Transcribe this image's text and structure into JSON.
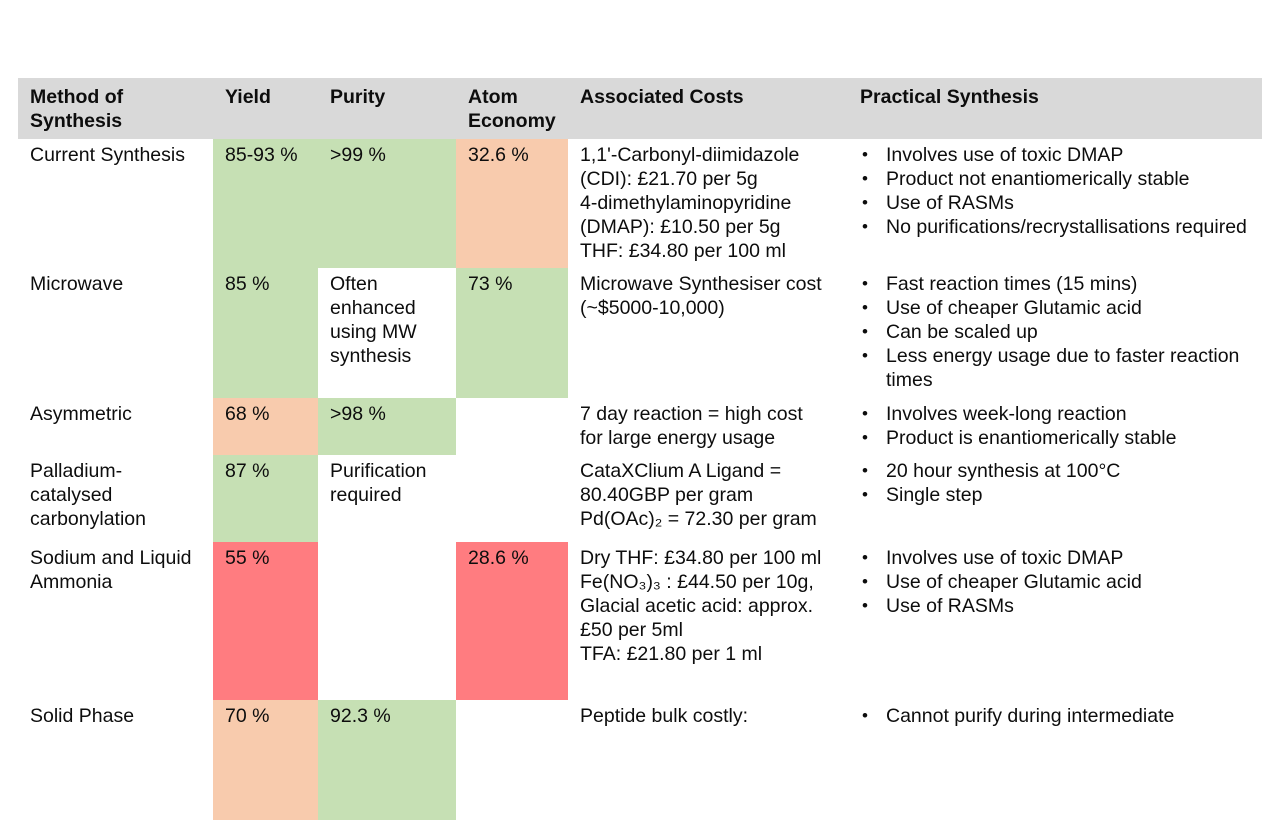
{
  "bullet_char": "•",
  "colors": {
    "header_bg": "#D9D9D9",
    "good": "#C6E0B4",
    "fair": "#F8CBAD",
    "poor": "#FF7C80"
  },
  "table": {
    "columns": [
      {
        "label": "Method of Synthesis"
      },
      {
        "label": "Yield"
      },
      {
        "label": "Purity"
      },
      {
        "label": "Atom Economy"
      },
      {
        "label": "Associated Costs"
      },
      {
        "label": "Practical Synthesis"
      }
    ],
    "rows": [
      {
        "method": "Current Synthesis",
        "yield": {
          "text": "85-93 %",
          "rating": "good"
        },
        "purity": {
          "text": ">99 %",
          "rating": "good"
        },
        "atom_economy": {
          "text": "32.6 %",
          "rating": "fair"
        },
        "associated_costs": [
          "1,1'-Carbonyl-diimidazole (CDI): £21.70 per 5g",
          "4-dimethylaminopyridine (DMAP): £10.50 per 5g",
          "THF: £34.80 per 100 ml"
        ],
        "practical_synthesis": [
          "Involves use of toxic DMAP",
          "Product not enantiomerically stable",
          "Use of RASMs",
          "No purifications/recrystallisations required"
        ]
      },
      {
        "method": "Microwave",
        "yield": {
          "text": "85 %",
          "rating": "good"
        },
        "purity": {
          "text": "Often enhanced using MW synthesis",
          "rating": null
        },
        "atom_economy": {
          "text": "73 %",
          "rating": "good"
        },
        "associated_costs": [
          "Microwave Synthesiser cost (~$5000-10,000)"
        ],
        "practical_synthesis": [
          "Fast reaction times (15 mins)",
          "Use of cheaper Glutamic acid",
          "Can be scaled up",
          "Less energy usage due to faster reaction times"
        ]
      },
      {
        "method": "Asymmetric",
        "yield": {
          "text": "68 %",
          "rating": "fair"
        },
        "purity": {
          "text": ">98 %",
          "rating": "good"
        },
        "atom_economy": {
          "text": "",
          "rating": null
        },
        "associated_costs": [
          "7 day reaction = high cost for large energy usage"
        ],
        "practical_synthesis": [
          "Involves week-long reaction",
          "Product is enantiomerically stable"
        ]
      },
      {
        "method": "Palladium-catalysed carbonylation",
        "yield": {
          "text": "87 %",
          "rating": "good"
        },
        "purity": {
          "text": "Purification required",
          "rating": null
        },
        "atom_economy": {
          "text": "",
          "rating": null
        },
        "associated_costs": [
          "CataXClium A Ligand = 80.40GBP per gram",
          "Pd(OAc)₂ = 72.30 per gram"
        ],
        "practical_synthesis": [
          "20 hour synthesis at 100°C",
          "Single step"
        ]
      },
      {
        "method": "Sodium and Liquid Ammonia",
        "yield": {
          "text": "55 %",
          "rating": "poor"
        },
        "purity": {
          "text": "",
          "rating": null
        },
        "atom_economy": {
          "text": "28.6 %",
          "rating": "poor"
        },
        "associated_costs": [
          "Dry THF: £34.80 per 100 ml",
          "Fe(NO₃)₃ : £44.50 per 10g,",
          "Glacial acetic acid: approx. £50 per 5ml",
          "TFA: £21.80 per 1 ml"
        ],
        "practical_synthesis": [
          "Involves use of toxic DMAP",
          "Use of cheaper Glutamic acid",
          "Use of RASMs"
        ]
      },
      {
        "method": "Solid Phase",
        "yield": {
          "text": "70 %",
          "rating": "fair"
        },
        "purity": {
          "text": "92.3 %",
          "rating": "good"
        },
        "atom_economy": {
          "text": "",
          "rating": null
        },
        "associated_costs": [
          "Peptide bulk costly:"
        ],
        "practical_synthesis": [
          "Cannot purify during intermediate"
        ]
      }
    ]
  }
}
